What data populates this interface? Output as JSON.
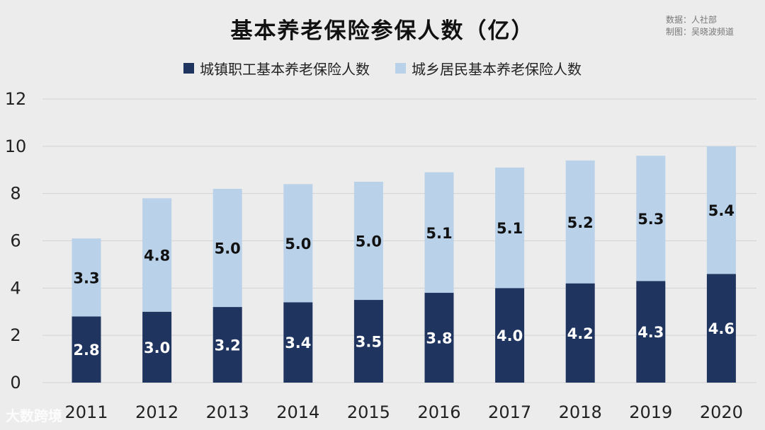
{
  "title": "基本养老保险参保人数（亿）",
  "source": {
    "data_line": "数据：人社部",
    "author_line": "制图：吴晓波频道"
  },
  "watermark": "大数跨境",
  "colors": {
    "urban": "#1f3560",
    "rural": "#b9d2ea",
    "background": "#ececec",
    "grid": "#d2d2d2"
  },
  "chart_data": {
    "type": "bar",
    "stacked": true,
    "categories": [
      "2011",
      "2012",
      "2013",
      "2014",
      "2015",
      "2016",
      "2017",
      "2018",
      "2019",
      "2020"
    ],
    "series": [
      {
        "name": "城镇职工基本养老保险人数",
        "values": [
          2.8,
          3.0,
          3.2,
          3.4,
          3.5,
          3.8,
          4.0,
          4.2,
          4.3,
          4.6
        ],
        "labels": [
          "2.8",
          "3.0",
          "3.2",
          "3.4",
          "3.5",
          "3.8",
          "4.0",
          "4.2",
          "4.3",
          "4.6"
        ]
      },
      {
        "name": "城乡居民基本养老保险人数",
        "values": [
          3.3,
          4.8,
          5.0,
          5.0,
          5.0,
          5.1,
          5.1,
          5.2,
          5.3,
          5.4
        ],
        "labels": [
          "3.3",
          "4.8",
          "5.0",
          "5.0",
          "5.0",
          "5.1",
          "5.1",
          "5.2",
          "5.3",
          "5.4"
        ]
      }
    ],
    "ylim": [
      0,
      12
    ],
    "yticks": [
      "0",
      "2",
      "4",
      "6",
      "8",
      "10",
      "12"
    ],
    "grid": true,
    "legend_position": "top-center"
  }
}
